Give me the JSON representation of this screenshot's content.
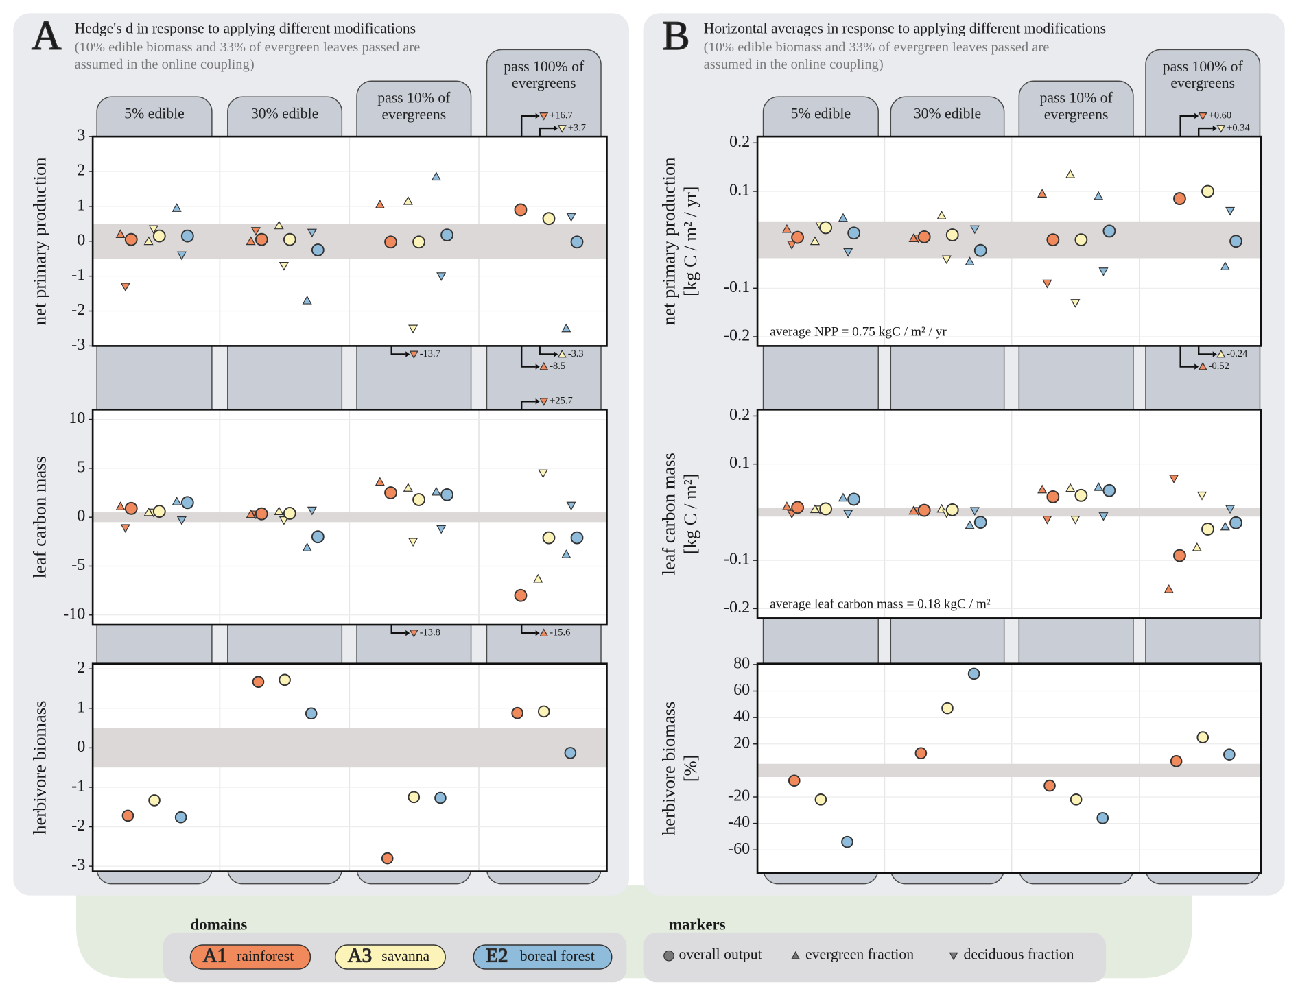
{
  "panels": [
    {
      "letter": "A",
      "title": "Hedge's d in response to applying different modifications",
      "subtitle": "(10% edible biomass and 33% of evergreen leaves passed are assumed in the online coupling)"
    },
    {
      "letter": "B",
      "title": "Horizontal averages in response to applying different modifications",
      "subtitle": "(10% edible biomass and 33% of evergreen leaves passed are assumed in the online coupling)"
    }
  ],
  "legend": {
    "domains_title": "domains",
    "domains": [
      {
        "code": "A1",
        "name": "rainforest",
        "color": "#f08a5d"
      },
      {
        "code": "A3",
        "name": "savanna",
        "color": "#fcf3b8"
      },
      {
        "code": "E2",
        "name": "boreal forest",
        "color": "#8fbcdb"
      }
    ],
    "markers_title": "markers",
    "markers": [
      {
        "marker": "o",
        "label": "overall output"
      },
      {
        "marker": "^",
        "label": "evergreen fraction"
      },
      {
        "marker": "v",
        "label": "deciduous fraction"
      }
    ]
  },
  "chart_data": [
    {
      "type": "scatter",
      "ylabel": [
        "net primary production"
      ],
      "categories": [
        "5% edible",
        "30% edible",
        "pass 10% of evergreens",
        "pass 100% of evergreens"
      ],
      "ylim": [
        -3,
        3
      ],
      "yticks": [
        -3,
        -2,
        -1,
        0,
        1,
        2,
        3
      ],
      "band": [
        -0.5,
        0.5
      ],
      "grid": true,
      "series": [
        {
          "marker": "^",
          "color": "#f08a5d",
          "values": [
            0.2,
            0.0,
            1.05,
            -8.5
          ],
          "value_labels": [
            null,
            null,
            null,
            "-8.5"
          ]
        },
        {
          "marker": "v",
          "color": "#f08a5d",
          "values": [
            -1.3,
            0.3,
            -13.7,
            16.7
          ],
          "value_labels": [
            null,
            null,
            "-13.7",
            "+16.7"
          ]
        },
        {
          "marker": "o",
          "color": "#f08a5d",
          "values": [
            0.05,
            0.05,
            -0.02,
            0.9
          ]
        },
        {
          "marker": "^",
          "color": "#fcf3b8",
          "values": [
            0.0,
            0.45,
            1.15,
            -3.3
          ],
          "value_labels": [
            null,
            null,
            null,
            "-3.3"
          ]
        },
        {
          "marker": "v",
          "color": "#fcf3b8",
          "values": [
            0.35,
            -0.7,
            -2.5,
            3.7
          ],
          "value_labels": [
            null,
            null,
            null,
            "+3.7"
          ]
        },
        {
          "marker": "o",
          "color": "#fcf3b8",
          "values": [
            0.15,
            0.05,
            -0.02,
            0.65
          ]
        },
        {
          "marker": "^",
          "color": "#8fbcdb",
          "values": [
            0.95,
            -1.7,
            1.85,
            -2.5
          ]
        },
        {
          "marker": "v",
          "color": "#8fbcdb",
          "values": [
            -0.4,
            0.25,
            -1.0,
            0.7
          ]
        },
        {
          "marker": "o",
          "color": "#8fbcdb",
          "values": [
            0.15,
            -0.25,
            0.18,
            -0.02
          ]
        }
      ]
    },
    {
      "type": "scatter",
      "ylabel": [
        "leaf carbon mass"
      ],
      "ylim": [
        -11,
        11
      ],
      "yticks": [
        -10,
        -5,
        0,
        5,
        10
      ],
      "band": [
        -0.5,
        0.5
      ],
      "grid": true,
      "series": [
        {
          "marker": "^",
          "color": "#f08a5d",
          "values": [
            1.1,
            0.3,
            3.6,
            -15.6
          ],
          "value_labels": [
            null,
            null,
            null,
            "-15.6"
          ]
        },
        {
          "marker": "v",
          "color": "#f08a5d",
          "values": [
            -1.1,
            0.3,
            -13.8,
            25.7
          ],
          "value_labels": [
            null,
            null,
            "-13.8",
            "+25.7"
          ]
        },
        {
          "marker": "o",
          "color": "#f08a5d",
          "values": [
            0.9,
            0.35,
            2.5,
            -8.0
          ]
        },
        {
          "marker": "^",
          "color": "#fcf3b8",
          "values": [
            0.5,
            0.6,
            3.0,
            -6.3
          ]
        },
        {
          "marker": "v",
          "color": "#fcf3b8",
          "values": [
            0.5,
            -0.3,
            -2.5,
            4.5
          ]
        },
        {
          "marker": "o",
          "color": "#fcf3b8",
          "values": [
            0.6,
            0.4,
            1.8,
            -2.1
          ]
        },
        {
          "marker": "^",
          "color": "#8fbcdb",
          "values": [
            1.6,
            -3.1,
            2.6,
            -3.8
          ]
        },
        {
          "marker": "v",
          "color": "#8fbcdb",
          "values": [
            -0.3,
            0.7,
            -1.2,
            1.2
          ]
        },
        {
          "marker": "o",
          "color": "#8fbcdb",
          "values": [
            1.5,
            -2.0,
            2.3,
            -2.1
          ]
        }
      ]
    },
    {
      "type": "scatter",
      "ylabel": [
        "herbivore biomass"
      ],
      "ylim": [
        -3.13,
        2.13
      ],
      "yticks": [
        -3,
        -2,
        -1,
        0,
        1,
        2
      ],
      "band": [
        -0.5,
        0.5
      ],
      "grid": true,
      "series": [
        {
          "marker": "o",
          "color": "#f08a5d",
          "values": [
            -1.72,
            1.67,
            -2.8,
            0.88
          ]
        },
        {
          "marker": "o",
          "color": "#fcf3b8",
          "values": [
            -1.33,
            1.72,
            -1.25,
            0.92
          ]
        },
        {
          "marker": "o",
          "color": "#8fbcdb",
          "values": [
            -1.76,
            0.87,
            -1.27,
            -0.13
          ]
        }
      ]
    },
    {
      "type": "scatter",
      "ylabel": [
        "net primary production",
        "[kg C / m² / yr]"
      ],
      "categories": [
        "5% edible",
        "30% edible",
        "pass 10% of evergreens",
        "pass 100% of evergreens"
      ],
      "annotation": "average NPP = 0.75 kgC / m² / yr",
      "ylim": [
        -0.219,
        0.213
      ],
      "yticks": [
        -0.2,
        -0.1,
        0.1,
        0.2
      ],
      "band": [
        -0.038,
        0.038
      ],
      "grid": true,
      "series": [
        {
          "marker": "^",
          "color": "#f08a5d",
          "values": [
            0.022,
            0.003,
            0.095,
            -0.52
          ],
          "value_labels": [
            null,
            null,
            null,
            "-0.52"
          ]
        },
        {
          "marker": "v",
          "color": "#f08a5d",
          "values": [
            -0.01,
            0.003,
            -0.09,
            0.6
          ],
          "value_labels": [
            null,
            null,
            null,
            "+0.60"
          ]
        },
        {
          "marker": "o",
          "color": "#f08a5d",
          "values": [
            0.005,
            0.006,
            0.0,
            0.085
          ]
        },
        {
          "marker": "^",
          "color": "#fcf3b8",
          "values": [
            -0.003,
            0.05,
            0.135,
            -0.24
          ],
          "value_labels": [
            null,
            null,
            null,
            "-0.24"
          ]
        },
        {
          "marker": "v",
          "color": "#fcf3b8",
          "values": [
            0.03,
            -0.04,
            -0.13,
            0.34
          ],
          "value_labels": [
            null,
            null,
            null,
            "+0.34"
          ]
        },
        {
          "marker": "o",
          "color": "#fcf3b8",
          "values": [
            0.025,
            0.01,
            0.0,
            0.1
          ]
        },
        {
          "marker": "^",
          "color": "#8fbcdb",
          "values": [
            0.045,
            -0.045,
            0.09,
            -0.055
          ]
        },
        {
          "marker": "v",
          "color": "#8fbcdb",
          "values": [
            -0.025,
            0.022,
            -0.065,
            0.06
          ]
        },
        {
          "marker": "o",
          "color": "#8fbcdb",
          "values": [
            0.014,
            -0.022,
            0.018,
            -0.003
          ]
        }
      ]
    },
    {
      "type": "scatter",
      "ylabel": [
        "leaf carbon mass",
        "[kg C / m²]"
      ],
      "annotation": "average leaf carbon mass = 0.18 kgC / m²",
      "ylim": [
        -0.22,
        0.213
      ],
      "yticks": [
        -0.2,
        -0.1,
        0.1,
        0.2
      ],
      "band": [
        -0.009,
        0.009
      ],
      "grid": true,
      "series": [
        {
          "marker": "^",
          "color": "#f08a5d",
          "values": [
            0.012,
            0.003,
            0.047,
            -0.16
          ]
        },
        {
          "marker": "v",
          "color": "#f08a5d",
          "values": [
            -0.003,
            0.003,
            -0.015,
            0.07
          ]
        },
        {
          "marker": "o",
          "color": "#f08a5d",
          "values": [
            0.01,
            0.004,
            0.032,
            -0.09
          ]
        },
        {
          "marker": "^",
          "color": "#fcf3b8",
          "values": [
            0.006,
            0.007,
            0.05,
            -0.073
          ]
        },
        {
          "marker": "v",
          "color": "#fcf3b8",
          "values": [
            0.006,
            -0.002,
            -0.015,
            0.035
          ]
        },
        {
          "marker": "o",
          "color": "#fcf3b8",
          "values": [
            0.007,
            0.005,
            0.035,
            -0.035
          ]
        },
        {
          "marker": "^",
          "color": "#8fbcdb",
          "values": [
            0.03,
            -0.027,
            0.052,
            -0.03
          ]
        },
        {
          "marker": "v",
          "color": "#8fbcdb",
          "values": [
            -0.003,
            0.003,
            -0.008,
            0.007
          ]
        },
        {
          "marker": "o",
          "color": "#8fbcdb",
          "values": [
            0.027,
            -0.021,
            0.045,
            -0.022
          ]
        }
      ]
    },
    {
      "type": "scatter",
      "ylabel": [
        "herbivore biomass",
        "[%]"
      ],
      "ylim": [
        -77.5,
        80.6
      ],
      "yticks": [
        -60,
        -40,
        -20,
        20,
        40,
        60,
        80
      ],
      "band": [
        -5,
        5
      ],
      "grid": true,
      "series": [
        {
          "marker": "o",
          "color": "#f08a5d",
          "values": [
            -7.7,
            13,
            -11.5,
            7
          ]
        },
        {
          "marker": "o",
          "color": "#fcf3b8",
          "values": [
            -22,
            47,
            -22,
            25
          ]
        },
        {
          "marker": "o",
          "color": "#8fbcdb",
          "values": [
            -54,
            73,
            -36,
            12
          ]
        }
      ]
    }
  ]
}
